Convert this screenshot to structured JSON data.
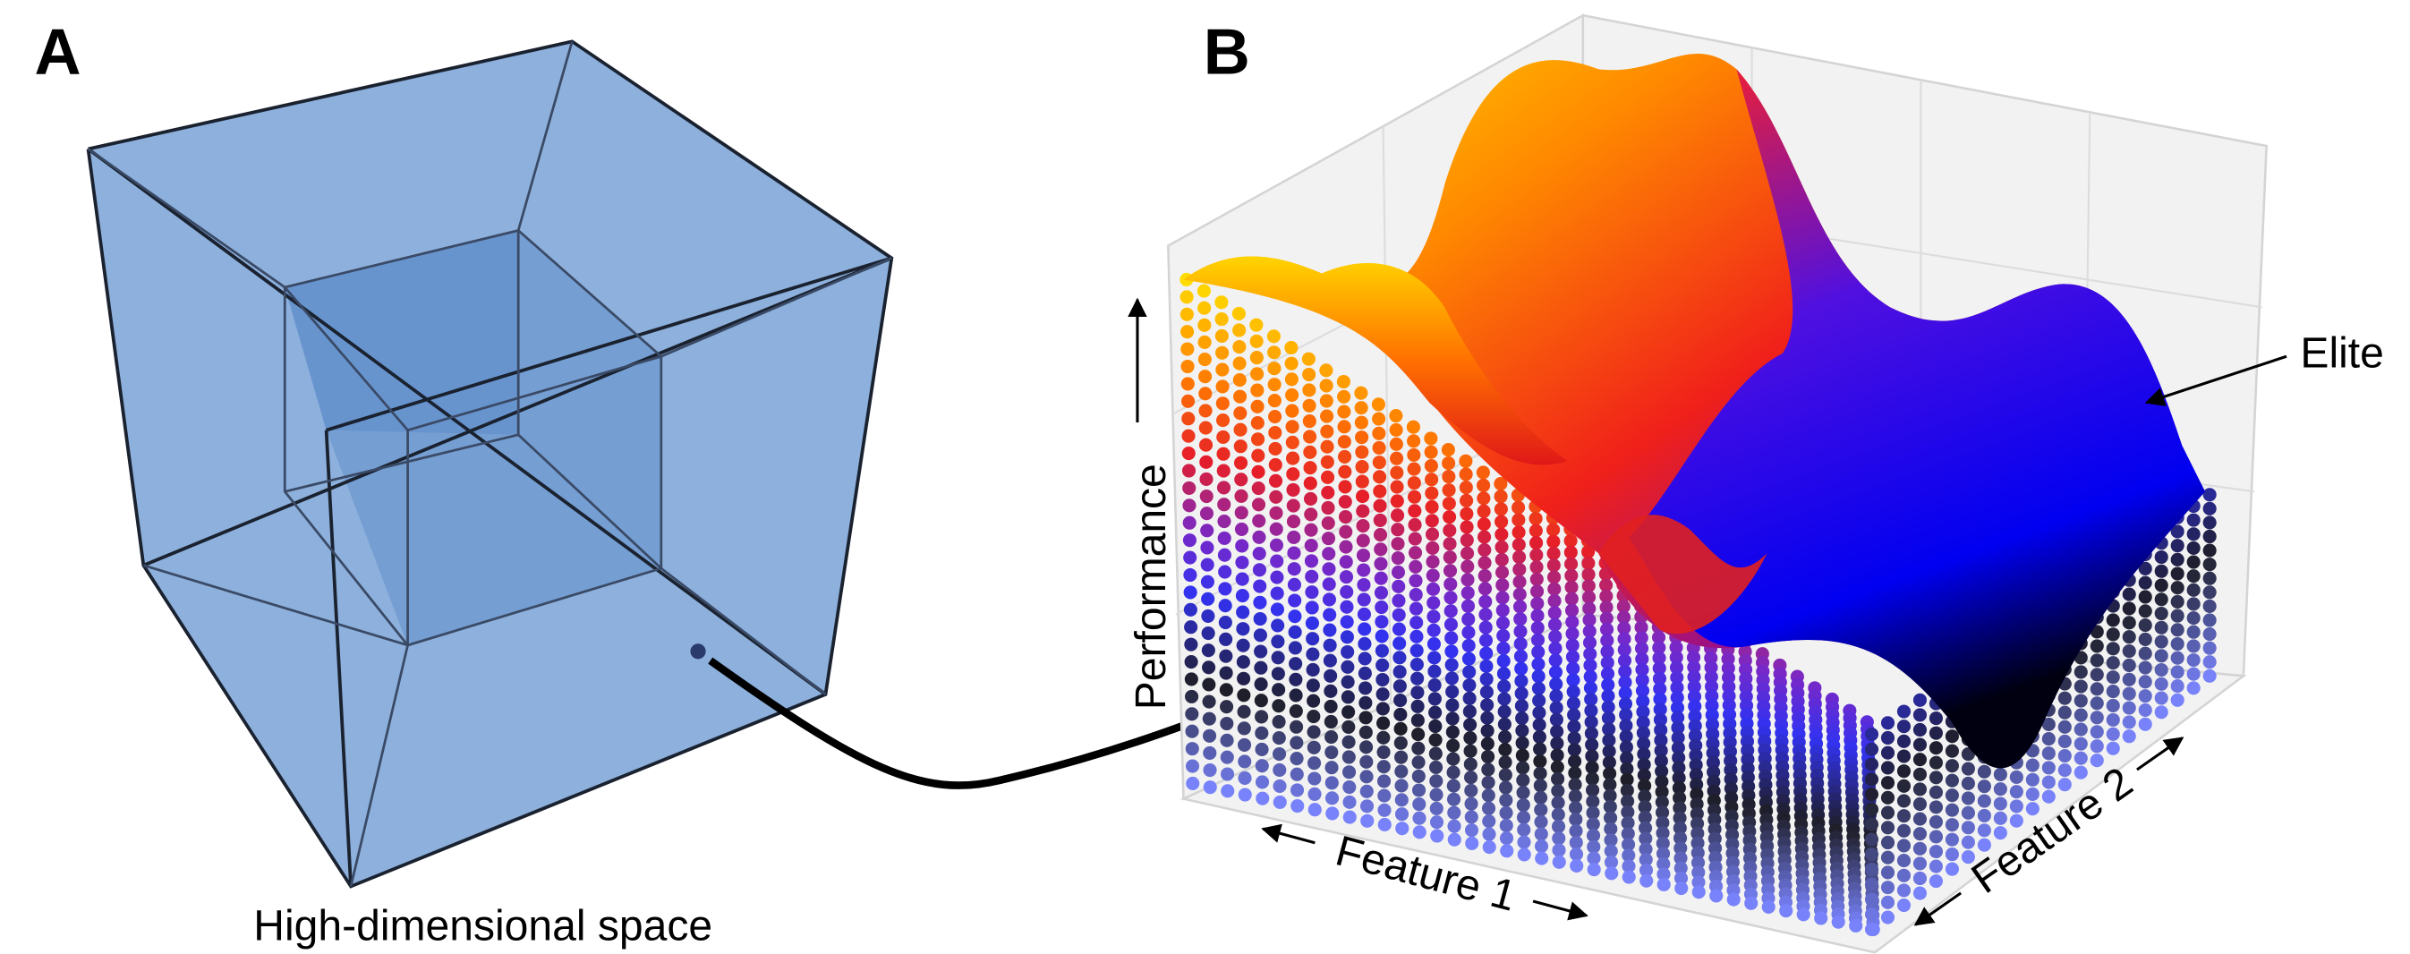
{
  "panels": [
    {
      "label": "A",
      "caption": "High-dimensional space"
    },
    {
      "label": "B",
      "axes": {
        "z": "Performance",
        "x": "Feature 1",
        "y": "Feature 2"
      },
      "annotation": "Elite"
    }
  ]
}
